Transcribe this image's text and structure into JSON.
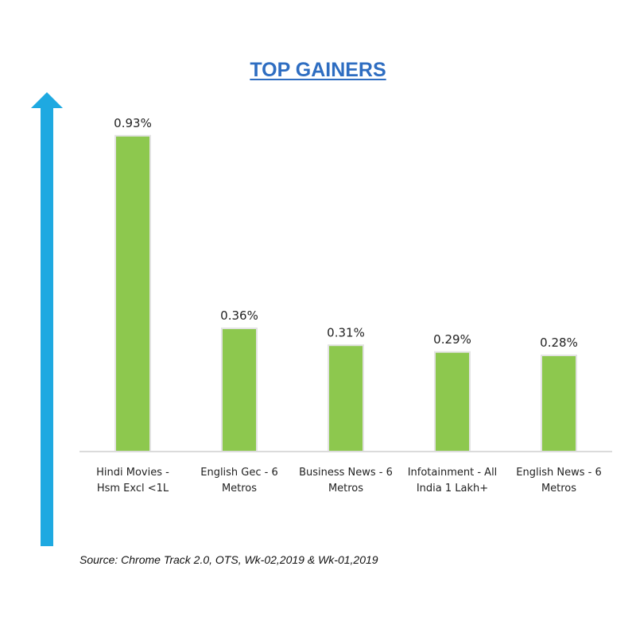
{
  "chart_data": {
    "type": "bar",
    "title": "TOP GAINERS",
    "categories": [
      "Hindi Movies -\nHsm Excl <1L",
      "English Gec - 6\nMetros",
      "Business News - 6\nMetros",
      "Infotainment - All\nIndia 1 Lakh+",
      "English News - 6\nMetros"
    ],
    "values": [
      0.93,
      0.36,
      0.31,
      0.29,
      0.28
    ],
    "value_labels": [
      "0.93%",
      "0.36%",
      "0.31%",
      "0.29%",
      "0.28%"
    ],
    "ylim": [
      0,
      1.0
    ],
    "bar_color": "#8dc84e",
    "arrow_color": "#1ea9e1"
  },
  "source": "Source: Chrome Track 2.0, OTS, Wk-02,2019 & Wk-01,2019"
}
